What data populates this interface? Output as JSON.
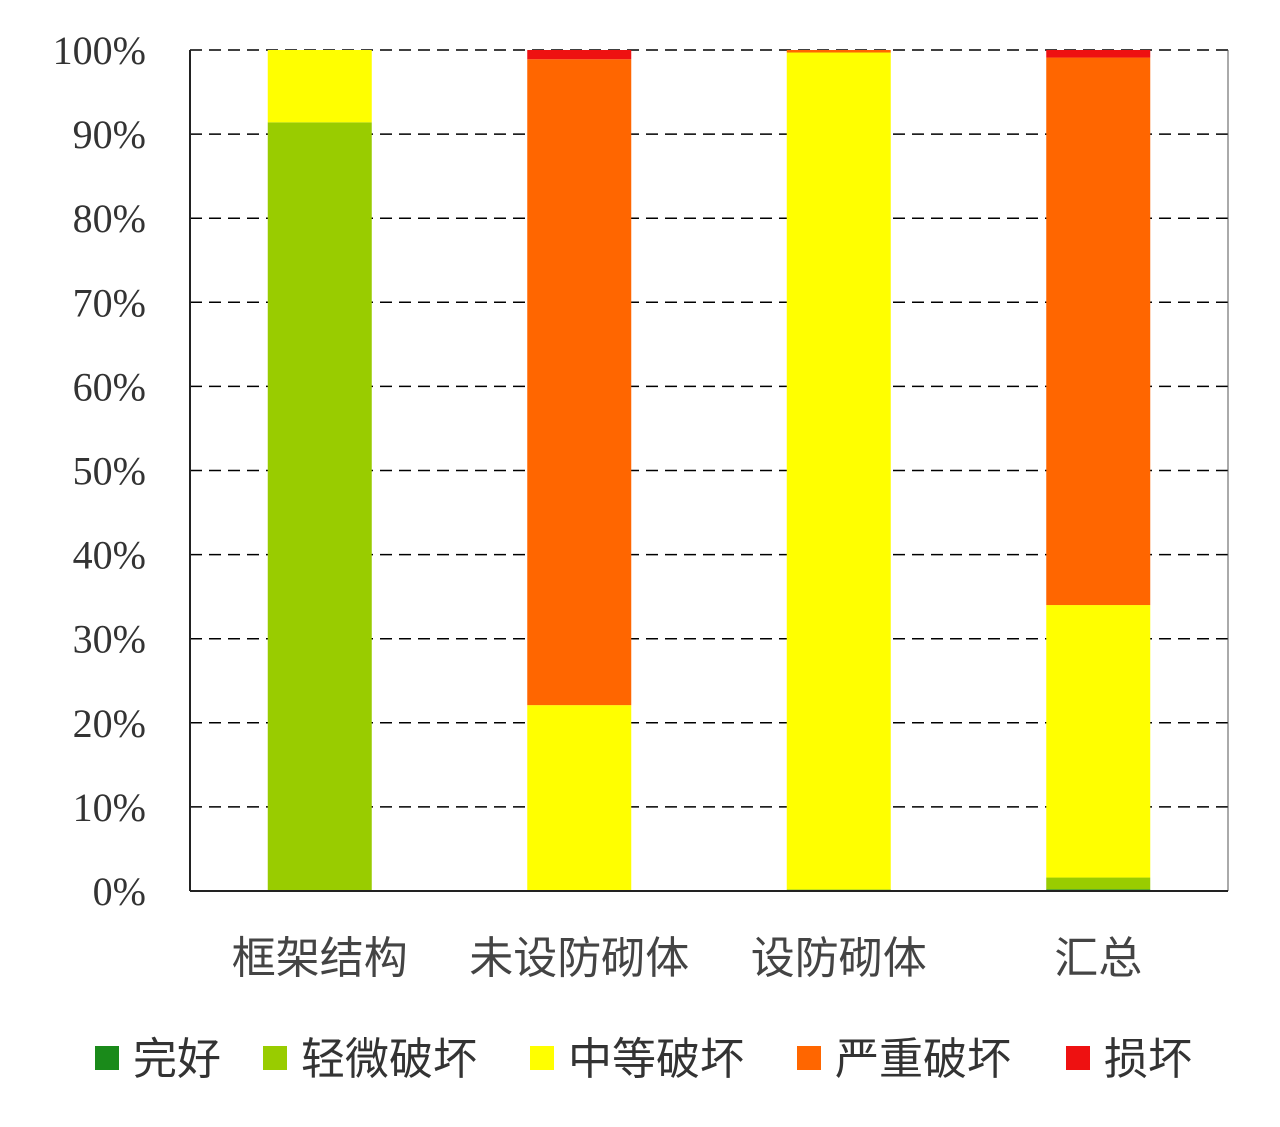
{
  "chart_data": {
    "type": "bar",
    "stacked": true,
    "percent": true,
    "categories": [
      "框架结构",
      "未设防砌体",
      "设防砌体",
      "汇总"
    ],
    "series": [
      {
        "name": "完好",
        "color": "#1a8a1a",
        "values": [
          0,
          0,
          0,
          0.2
        ]
      },
      {
        "name": "轻微破坏",
        "color": "#99cc00",
        "values": [
          91.4,
          0,
          0.2,
          1.4
        ]
      },
      {
        "name": "中等破坏",
        "color": "#ffff00",
        "values": [
          8.6,
          22.1,
          99.5,
          32.4
        ]
      },
      {
        "name": "严重破坏",
        "color": "#ff6600",
        "values": [
          0,
          76.8,
          0.3,
          65.1
        ]
      },
      {
        "name": "损坏",
        "color": "#ee1111",
        "values": [
          0,
          1.1,
          0,
          0.9
        ]
      }
    ],
    "yticks": [
      "0%",
      "10%",
      "20%",
      "30%",
      "40%",
      "50%",
      "60%",
      "70%",
      "80%",
      "90%",
      "100%"
    ],
    "ylim": [
      0,
      100
    ],
    "grid": "dashed-horizontal",
    "legend_position": "bottom"
  }
}
